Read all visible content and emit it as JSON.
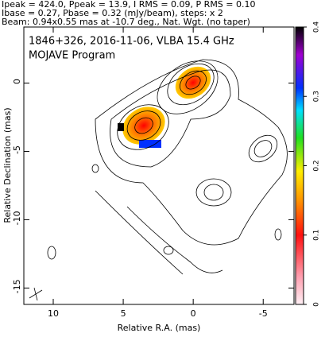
{
  "chart_data": {
    "type": "contour",
    "header": [
      "Ipeak = 424.0, Ppeak = 13.9, I RMS = 0.09, P RMS = 0.10",
      "Ibase = 0.27, Pbase = 0.32 (mJy/beam), steps: x 2",
      "Beam: 0.94x0.55 mas at -10.7 deg., Nat. Wgt. (no taper)"
    ],
    "title": "1846+326, 2016-11-06, VLBA 15.4 GHz",
    "subtitle": "MOJAVE Program",
    "xlabel": "Relative R.A. (mas)",
    "ylabel": "Relative Declination (mas)",
    "xlim": [
      12.1,
      -7.2
    ],
    "xticks": [
      10,
      5,
      0,
      -5
    ],
    "ylim": [
      -16.2,
      4.1
    ],
    "yticks": [
      0,
      -5,
      -10,
      -15
    ],
    "clim": [
      0,
      0.4
    ],
    "cticks": [
      0,
      0.1,
      0.2,
      0.3,
      0.4
    ]
  }
}
